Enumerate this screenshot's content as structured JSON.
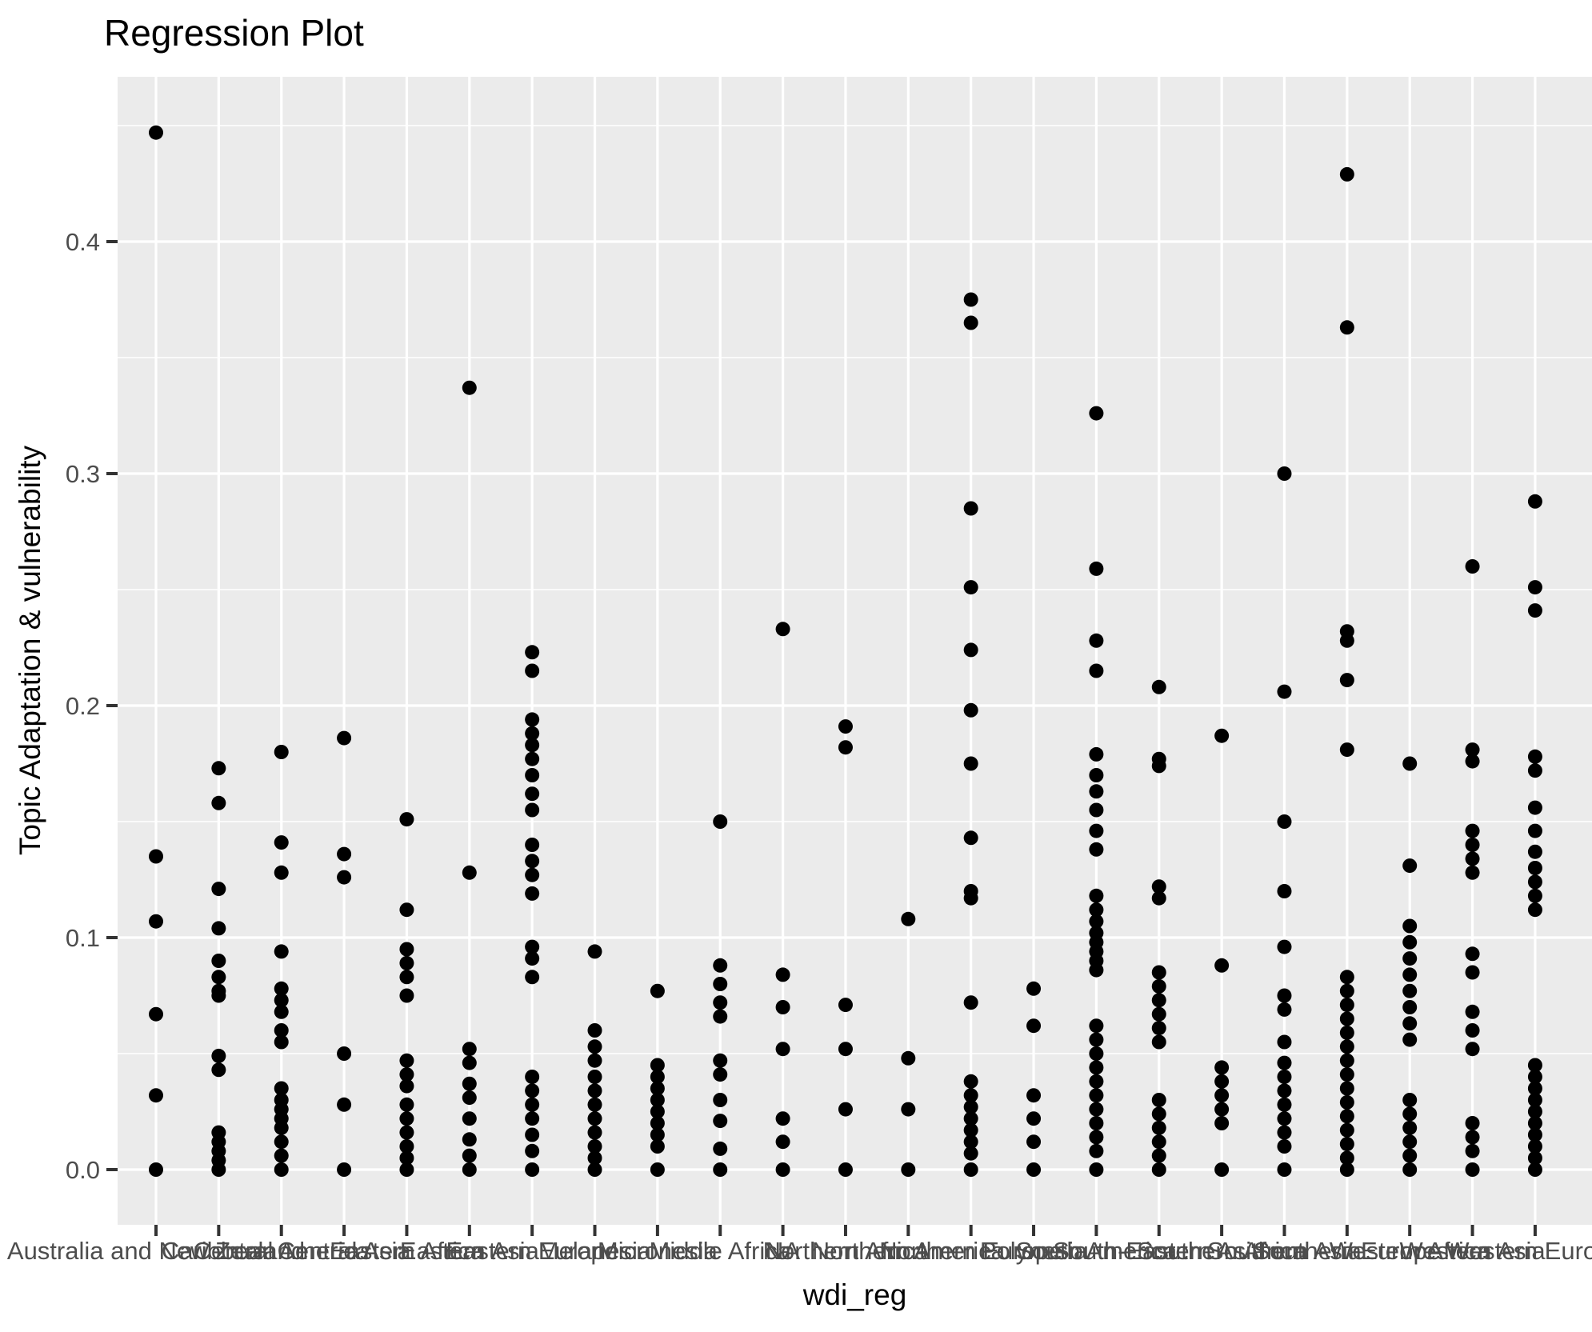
{
  "chart": {
    "title": "Regression Plot",
    "x_axis_title": "wdi_reg",
    "y_axis_title": "Topic Adaptation & vulnerability"
  },
  "chart_data": {
    "type": "scatter",
    "title": "Regression Plot",
    "xlabel": "wdi_reg",
    "ylabel": "Topic Adaptation & vulnerability",
    "ylim": [
      -0.024,
      0.471
    ],
    "y_ticks": [
      0.0,
      0.1,
      0.2,
      0.3,
      0.4
    ],
    "y_tick_labels": [
      "0.0",
      "0.1",
      "0.2",
      "0.3",
      "0.4"
    ],
    "y_minor_breaks": [
      0.05,
      0.15,
      0.25,
      0.35,
      0.45
    ],
    "grid": true,
    "legend": false,
    "colors": {
      "point": "#000000",
      "panel_background": "#EBEBEB",
      "grid": "#FFFFFF",
      "axis_text": "#4D4D4D",
      "tick_mark": "#333333",
      "title_text": "#000000"
    },
    "series": [
      {
        "category": "Australia and New Zealand",
        "values": [
          0.447,
          0.135,
          0.107,
          0.067,
          0.032,
          0.0
        ]
      },
      {
        "category": "Caribbean",
        "values": [
          0.173,
          0.158,
          0.121,
          0.104,
          0.09,
          0.083,
          0.077,
          0.075,
          0.049,
          0.043,
          0.016,
          0.012,
          0.008,
          0.004,
          0.0
        ]
      },
      {
        "category": "Central America",
        "values": [
          0.18,
          0.141,
          0.128,
          0.094,
          0.078,
          0.073,
          0.068,
          0.06,
          0.055,
          0.035,
          0.03,
          0.026,
          0.022,
          0.018,
          0.012,
          0.006,
          0.0
        ]
      },
      {
        "category": "Central Asia",
        "values": [
          0.186,
          0.136,
          0.126,
          0.05,
          0.028,
          0.0
        ]
      },
      {
        "category": "Eastern Africa",
        "values": [
          0.151,
          0.112,
          0.095,
          0.089,
          0.083,
          0.075,
          0.047,
          0.041,
          0.036,
          0.028,
          0.022,
          0.016,
          0.01,
          0.005,
          0.0
        ]
      },
      {
        "category": "Eastern Asia",
        "values": [
          0.337,
          0.128,
          0.052,
          0.046,
          0.037,
          0.031,
          0.022,
          0.013,
          0.006,
          0.0
        ]
      },
      {
        "category": "Eastern Europe",
        "values": [
          0.223,
          0.215,
          0.194,
          0.188,
          0.183,
          0.177,
          0.17,
          0.162,
          0.155,
          0.14,
          0.133,
          0.127,
          0.119,
          0.096,
          0.091,
          0.083,
          0.04,
          0.034,
          0.028,
          0.022,
          0.015,
          0.008,
          0.0
        ]
      },
      {
        "category": "Melanesia",
        "values": [
          0.094,
          0.06,
          0.053,
          0.047,
          0.04,
          0.034,
          0.028,
          0.022,
          0.016,
          0.01,
          0.005,
          0.0
        ]
      },
      {
        "category": "Micronesia",
        "values": [
          0.077,
          0.045,
          0.04,
          0.035,
          0.03,
          0.025,
          0.02,
          0.015,
          0.01,
          0.0
        ]
      },
      {
        "category": "Middle Africa",
        "values": [
          0.15,
          0.088,
          0.08,
          0.072,
          0.066,
          0.047,
          0.041,
          0.03,
          0.021,
          0.009,
          0.0
        ]
      },
      {
        "category": "NA",
        "values": [
          0.233,
          0.084,
          0.07,
          0.052,
          0.022,
          0.012,
          0.0
        ]
      },
      {
        "category": "Northern Africa",
        "values": [
          0.191,
          0.182,
          0.071,
          0.052,
          0.026,
          0.0
        ]
      },
      {
        "category": "Northern America",
        "values": [
          0.108,
          0.048,
          0.026,
          0.0
        ]
      },
      {
        "category": "Northern Europe",
        "values": [
          0.375,
          0.365,
          0.285,
          0.251,
          0.224,
          0.198,
          0.175,
          0.143,
          0.12,
          0.117,
          0.072,
          0.038,
          0.032,
          0.027,
          0.022,
          0.017,
          0.012,
          0.007,
          0.0
        ]
      },
      {
        "category": "Polynesia",
        "values": [
          0.078,
          0.062,
          0.032,
          0.022,
          0.012,
          0.0
        ]
      },
      {
        "category": "South America",
        "values": [
          0.326,
          0.259,
          0.228,
          0.215,
          0.179,
          0.17,
          0.163,
          0.155,
          0.146,
          0.138,
          0.118,
          0.112,
          0.107,
          0.102,
          0.098,
          0.094,
          0.09,
          0.086,
          0.062,
          0.056,
          0.05,
          0.044,
          0.038,
          0.032,
          0.026,
          0.02,
          0.014,
          0.008,
          0.0
        ]
      },
      {
        "category": "South-Eastern Asia",
        "values": [
          0.208,
          0.177,
          0.174,
          0.122,
          0.117,
          0.085,
          0.079,
          0.073,
          0.067,
          0.061,
          0.055,
          0.03,
          0.024,
          0.018,
          0.012,
          0.006,
          0.0
        ]
      },
      {
        "category": "Southern Africa",
        "values": [
          0.187,
          0.088,
          0.044,
          0.038,
          0.032,
          0.026,
          0.02,
          0.0
        ]
      },
      {
        "category": "Southern Asia",
        "values": [
          0.3,
          0.206,
          0.15,
          0.12,
          0.096,
          0.075,
          0.069,
          0.055,
          0.046,
          0.04,
          0.034,
          0.028,
          0.022,
          0.016,
          0.01,
          0.0
        ]
      },
      {
        "category": "Southern Europe",
        "values": [
          0.429,
          0.363,
          0.232,
          0.228,
          0.211,
          0.181,
          0.083,
          0.077,
          0.071,
          0.065,
          0.059,
          0.053,
          0.047,
          0.041,
          0.035,
          0.029,
          0.023,
          0.017,
          0.011,
          0.005,
          0.0
        ]
      },
      {
        "category": "Western Africa",
        "values": [
          0.175,
          0.131,
          0.105,
          0.098,
          0.091,
          0.084,
          0.077,
          0.07,
          0.063,
          0.056,
          0.03,
          0.024,
          0.018,
          0.012,
          0.006,
          0.0
        ]
      },
      {
        "category": "Western Asia",
        "values": [
          0.26,
          0.181,
          0.176,
          0.146,
          0.14,
          0.134,
          0.128,
          0.093,
          0.085,
          0.068,
          0.06,
          0.052,
          0.02,
          0.014,
          0.008,
          0.0
        ]
      },
      {
        "category": "Western Europe",
        "values": [
          0.288,
          0.251,
          0.241,
          0.178,
          0.172,
          0.156,
          0.146,
          0.137,
          0.13,
          0.124,
          0.118,
          0.112,
          0.045,
          0.04,
          0.035,
          0.03,
          0.025,
          0.02,
          0.015,
          0.01,
          0.005,
          0.0
        ]
      }
    ]
  }
}
